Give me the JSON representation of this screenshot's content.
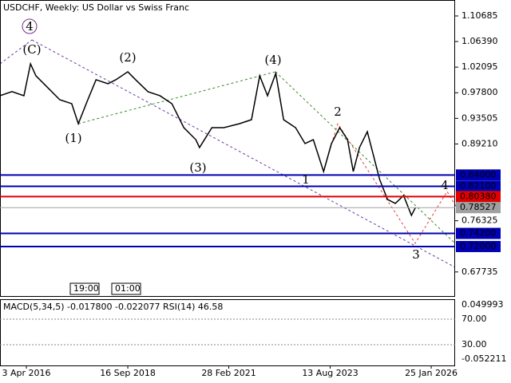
{
  "chart_data": {
    "type": "line",
    "title": "USDCHF, Weekly:  US Dollar vs Swiss Franc",
    "x": [
      2015.61,
      2015.9,
      2016.19,
      2016.35,
      2016.48,
      2016.77,
      2017.06,
      2017.35,
      2017.51,
      2017.74,
      2017.94,
      2018.23,
      2018.42,
      2018.71,
      2018.9,
      2019.2,
      2019.49,
      2019.78,
      2020.07,
      2020.36,
      2020.45,
      2020.75,
      2021.04,
      2021.42,
      2021.71,
      2021.91,
      2022.1,
      2022.3,
      2022.49,
      2022.78,
      2023.01,
      2023.21,
      2023.46,
      2023.65,
      2023.85,
      2024.04,
      2024.18,
      2024.33,
      2024.52,
      2024.62,
      2024.82,
      2025.01,
      2025.2,
      2025.4,
      2025.59,
      2025.69
    ],
    "series": [
      {
        "name": "USDCHF",
        "color": "#000000",
        "values": [
          0.973,
          0.98,
          0.973,
          1.0265,
          1.0065,
          0.9864,
          0.9663,
          0.9596,
          0.9261,
          0.9663,
          0.9998,
          0.9931,
          0.9998,
          1.0132,
          0.9998,
          0.9797,
          0.973,
          0.9596,
          0.9194,
          0.8993,
          0.886,
          0.9194,
          0.9194,
          0.9261,
          0.9328,
          1.0065,
          0.973,
          1.0105,
          0.9328,
          0.9194,
          0.8927,
          0.8993,
          0.8458,
          0.8927,
          0.9194,
          0.8993,
          0.8458,
          0.886,
          0.9127,
          0.886,
          0.8324,
          0.799,
          0.7923,
          0.8056,
          0.7722,
          0.7856
        ]
      }
    ],
    "xlim": [
      2015.61,
      2026.65
    ],
    "ylim": [
      0.6356,
      1.1336
    ],
    "xticks": [
      {
        "value": 2016.25,
        "label": "3 Apr 2016"
      },
      {
        "value": 2018.71,
        "label": "16 Sep 2018"
      },
      {
        "value": 2021.16,
        "label": "28 Feb 2021"
      },
      {
        "value": 2023.62,
        "label": "13 Aug 2023"
      },
      {
        "value": 2026.07,
        "label": "25 Jan 2026"
      }
    ],
    "yticks": [
      1.10685,
      {
        "value": 1.0639,
        "label": "1.06390"
      },
      1.02095,
      {
        "value": 0.978,
        "label": "0.97800"
      },
      0.93505,
      {
        "value": 0.8921,
        "label": "0.89210"
      },
      0.76325,
      0.67735
    ],
    "levels": [
      {
        "value": 0.84,
        "label": "0.84000",
        "color": "#0000b4"
      },
      {
        "value": 0.821,
        "label": "0.82100",
        "color": "#0000b4"
      },
      {
        "value": 0.8038,
        "label": "0.80380",
        "color": "#e00000"
      },
      {
        "value": 0.742,
        "label": "0.74200",
        "color": "#0000b4"
      },
      {
        "value": 0.72,
        "label": "0.72000",
        "color": "#0000b4"
      }
    ],
    "current": {
      "value": 0.78527,
      "label": "0.78527",
      "color": "#a0a0a0"
    },
    "annotations": [
      {
        "text": "4",
        "color": "#7a2a8a"
      },
      {
        "text": "(C)",
        "color": "#3a8a2a"
      },
      {
        "text": "(1)",
        "color": "#3a8a2a"
      },
      {
        "text": "(2)",
        "color": "#3a8a2a"
      },
      {
        "text": "(3)",
        "color": "#3a8a2a"
      },
      {
        "text": "(4)",
        "color": "#3a8a2a"
      },
      {
        "text": "1",
        "color": "#9a3030"
      },
      {
        "text": "2",
        "color": "#9a3030"
      },
      {
        "text": "3",
        "color": "#9a3030"
      },
      {
        "text": "4",
        "color": "#9a3030"
      }
    ],
    "time_labels": [
      "19:00",
      "01:00"
    ],
    "indicator": {
      "label": "MACD(5,34,5) -0.017800 -0.022077 RSI(14) 46.58",
      "tick_labels": [
        "0.049993",
        "70.00",
        "30.00",
        "-0.052211"
      ]
    }
  }
}
